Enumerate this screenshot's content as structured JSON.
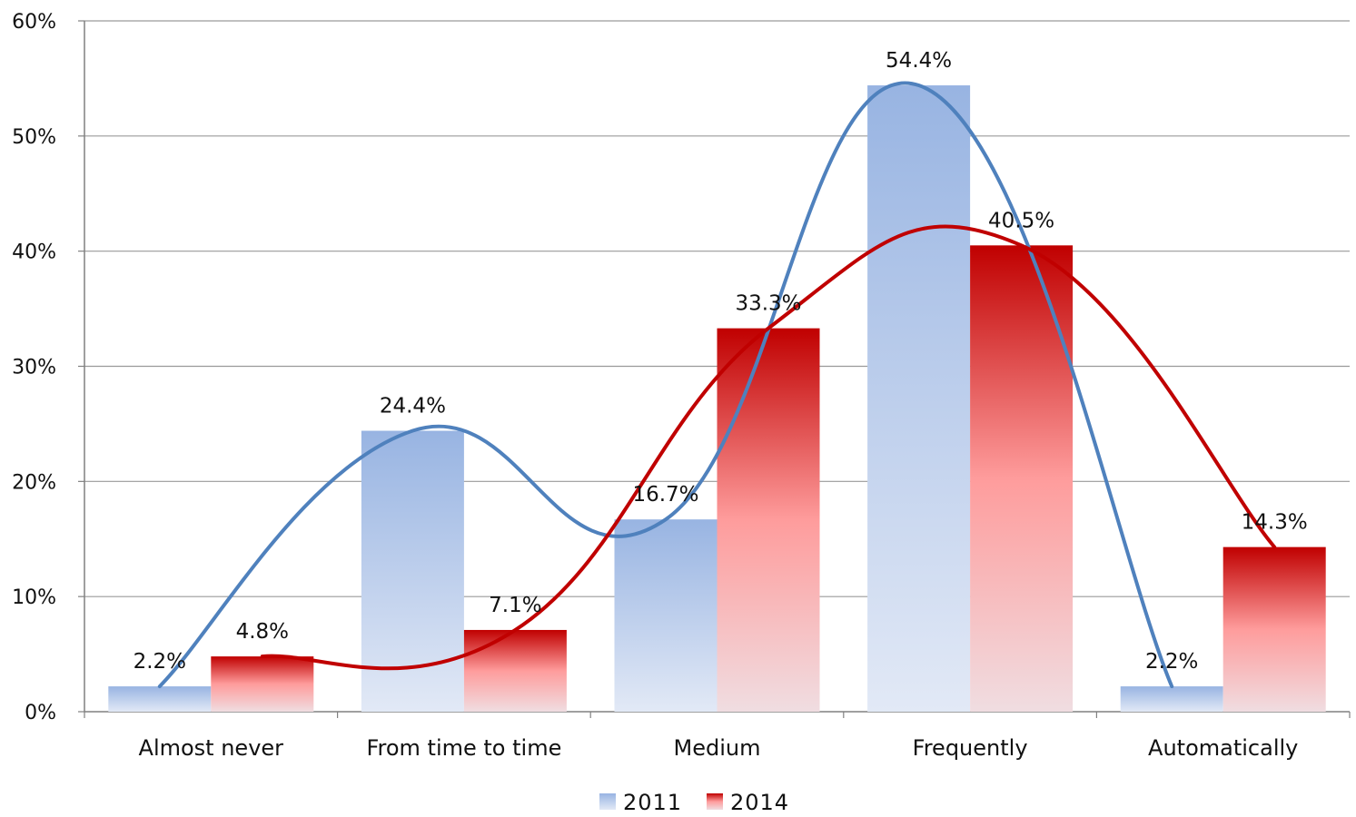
{
  "chart_data": {
    "type": "bar",
    "categories": [
      "Almost never",
      "From time to time",
      "Medium",
      "Frequently",
      "Automatically"
    ],
    "series": [
      {
        "name": "2011",
        "values": [
          2.2,
          24.4,
          16.7,
          54.4,
          2.2
        ],
        "labels": [
          "2.2%",
          "24.4%",
          "16.7%",
          "54.4%",
          "2.2%"
        ]
      },
      {
        "name": "2014",
        "values": [
          4.8,
          7.1,
          33.3,
          40.5,
          14.3
        ],
        "labels": [
          "4.8%",
          "7.1%",
          "33.3%",
          "40.5%",
          "14.3%"
        ]
      }
    ],
    "ylim": [
      0,
      60
    ],
    "yticks": [
      0,
      10,
      20,
      30,
      40,
      50,
      60
    ],
    "ytick_labels": [
      "0%",
      "10%",
      "20%",
      "30%",
      "40%",
      "50%",
      "60%"
    ],
    "trend_lines": "smoothed line per series through bar tops",
    "grid": true,
    "legend_position": "bottom-center",
    "colors": {
      "2011": {
        "top": "#98b4e2",
        "bottom": "#e2e9f6",
        "line": "#4f81bd"
      },
      "2014": {
        "top": "#c00000",
        "mid": "#fe9c9c",
        "bottom": "#f0dde1",
        "line": "#c00000"
      }
    }
  }
}
